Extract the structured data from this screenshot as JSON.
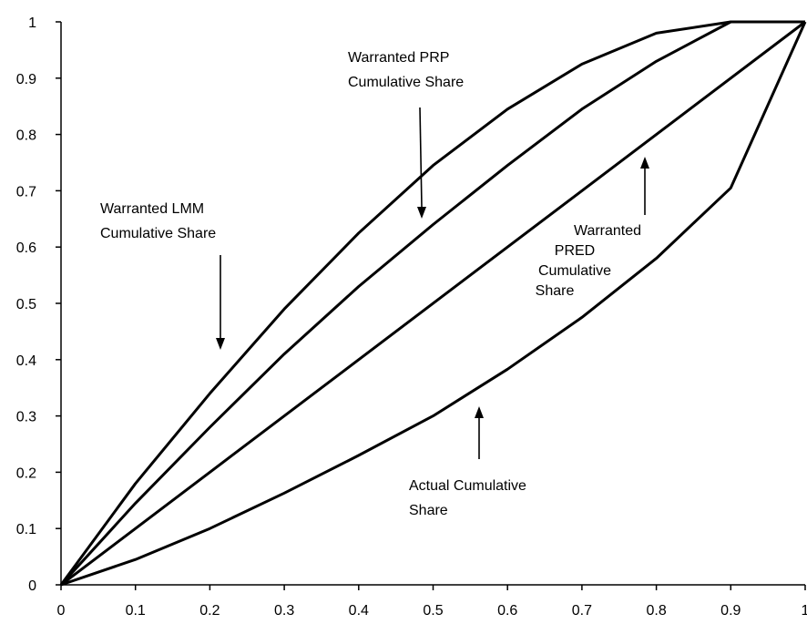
{
  "chart_data": {
    "type": "line",
    "title": "",
    "xlabel": "",
    "ylabel": "",
    "xlim": [
      0,
      1
    ],
    "ylim": [
      0,
      1
    ],
    "x_ticks": [
      "0",
      "0.1",
      "0.2",
      "0.3",
      "0.4",
      "0.5",
      "0.6",
      "0.7",
      "0.8",
      "0.9",
      "1"
    ],
    "y_ticks": [
      "0",
      "0.1",
      "0.2",
      "0.3",
      "0.4",
      "0.5",
      "0.6",
      "0.7",
      "0.8",
      "0.9",
      "1"
    ],
    "grid": false,
    "legend": "none",
    "series": [
      {
        "name": "Warranted LMM Cumulative Share",
        "x": [
          0,
          0.1,
          0.2,
          0.3,
          0.4,
          0.5,
          0.6,
          0.7,
          0.8,
          0.9,
          1
        ],
        "y": [
          0,
          0.18,
          0.34,
          0.49,
          0.625,
          0.745,
          0.845,
          0.925,
          0.98,
          1,
          1
        ]
      },
      {
        "name": "Warranted PRP Cumulative Share",
        "x": [
          0,
          0.1,
          0.2,
          0.3,
          0.4,
          0.5,
          0.6,
          0.7,
          0.8,
          0.9,
          1
        ],
        "y": [
          0,
          0.145,
          0.28,
          0.41,
          0.53,
          0.64,
          0.745,
          0.845,
          0.93,
          1,
          1
        ]
      },
      {
        "name": "Warranted PRED Cumulative Share",
        "x": [
          0,
          1
        ],
        "y": [
          0,
          1
        ]
      },
      {
        "name": "Actual Cumulative Share",
        "x": [
          0,
          0.1,
          0.2,
          0.3,
          0.4,
          0.5,
          0.6,
          0.7,
          0.8,
          0.9,
          1
        ],
        "y": [
          0,
          0.045,
          0.1,
          0.163,
          0.23,
          0.3,
          0.383,
          0.475,
          0.58,
          0.705,
          1
        ]
      }
    ],
    "annotations": [
      {
        "id": "lmm",
        "lines": [
          "Warranted LMM",
          "Cumulative Share"
        ]
      },
      {
        "id": "prp",
        "lines": [
          "Warranted PRP",
          "Cumulative Share"
        ]
      },
      {
        "id": "pred",
        "lines": [
          "Warranted",
          "PRED",
          "Cumulative",
          "Share"
        ]
      },
      {
        "id": "actual",
        "lines": [
          "Actual Cumulative",
          "Share"
        ]
      }
    ]
  }
}
